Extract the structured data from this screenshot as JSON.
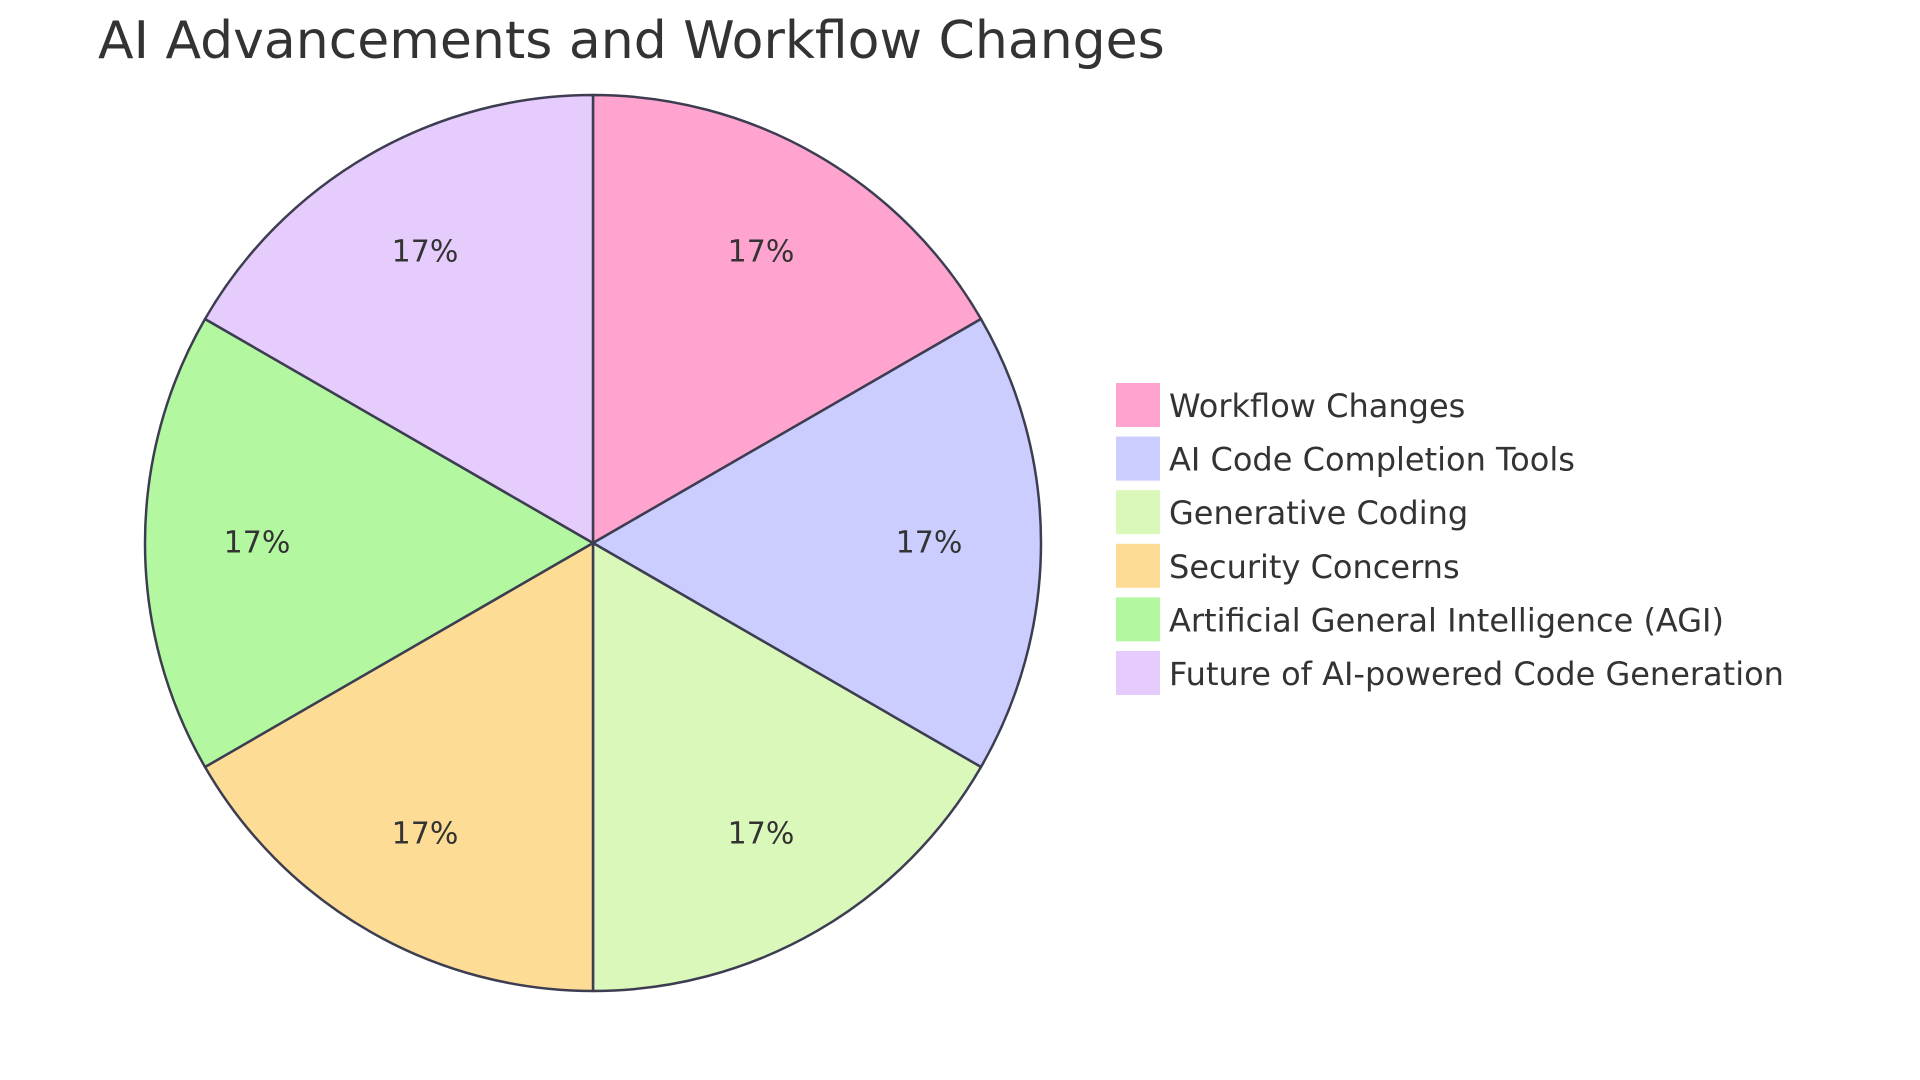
{
  "chart_data": {
    "type": "pie",
    "title": "AI Advancements and Workflow Changes",
    "categories": [
      "Workflow Changes",
      "AI Code Completion Tools",
      "Generative Coding",
      "Security Concerns",
      "Artificial General Intelligence (AGI)",
      "Future of AI-powered Code Generation"
    ],
    "values": [
      1,
      1,
      1,
      1,
      1,
      1
    ],
    "labels": [
      "17%",
      "17%",
      "17%",
      "17%",
      "17%",
      "17%"
    ],
    "colors": [
      "#ffa3cf",
      "#cacdfd",
      "#dbf8bb",
      "#fddd96",
      "#b3f8a0",
      "#e6cbfd"
    ],
    "legend_position": "right",
    "start_angle": "top",
    "direction": "clockwise"
  }
}
